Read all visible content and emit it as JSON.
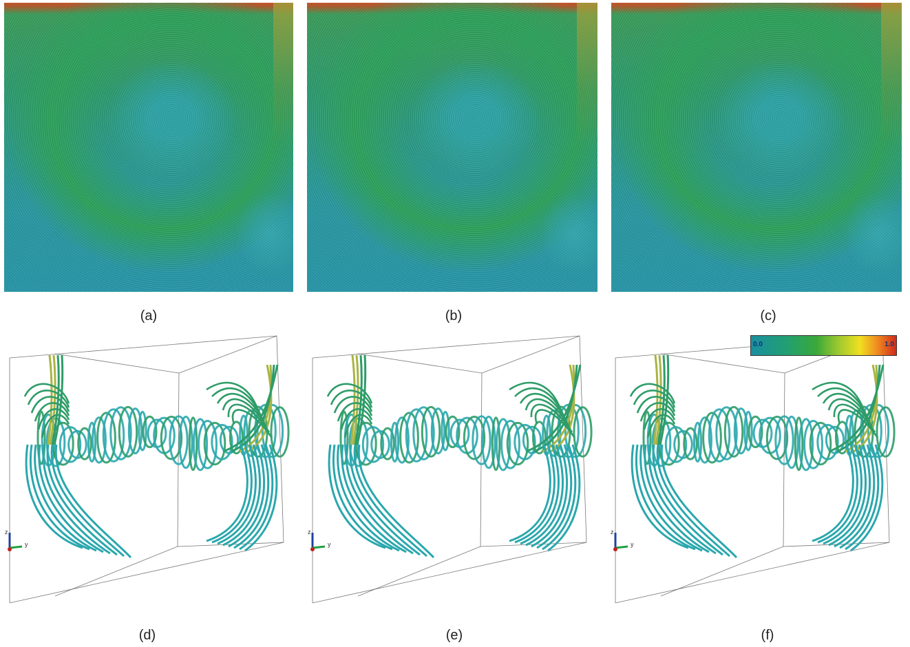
{
  "captions": {
    "a": "(a)",
    "b": "(b)",
    "c": "(c)",
    "d": "(d)",
    "e": "(e)",
    "f": "(f)"
  },
  "colorbar": {
    "min_label": "0.0",
    "max_label": "1.0",
    "colors": [
      "#1a8fa0",
      "#22a070",
      "#3aa83a",
      "#9cc830",
      "#f0e020",
      "#f08a20",
      "#d02a1e"
    ]
  },
  "axes": {
    "z": "z",
    "y": "y"
  },
  "palette": {
    "tube_teal": "#2aa7ad",
    "tube_green": "#2e9c68",
    "tube_yellow": "#a8b444",
    "box_edge": "#555555"
  }
}
